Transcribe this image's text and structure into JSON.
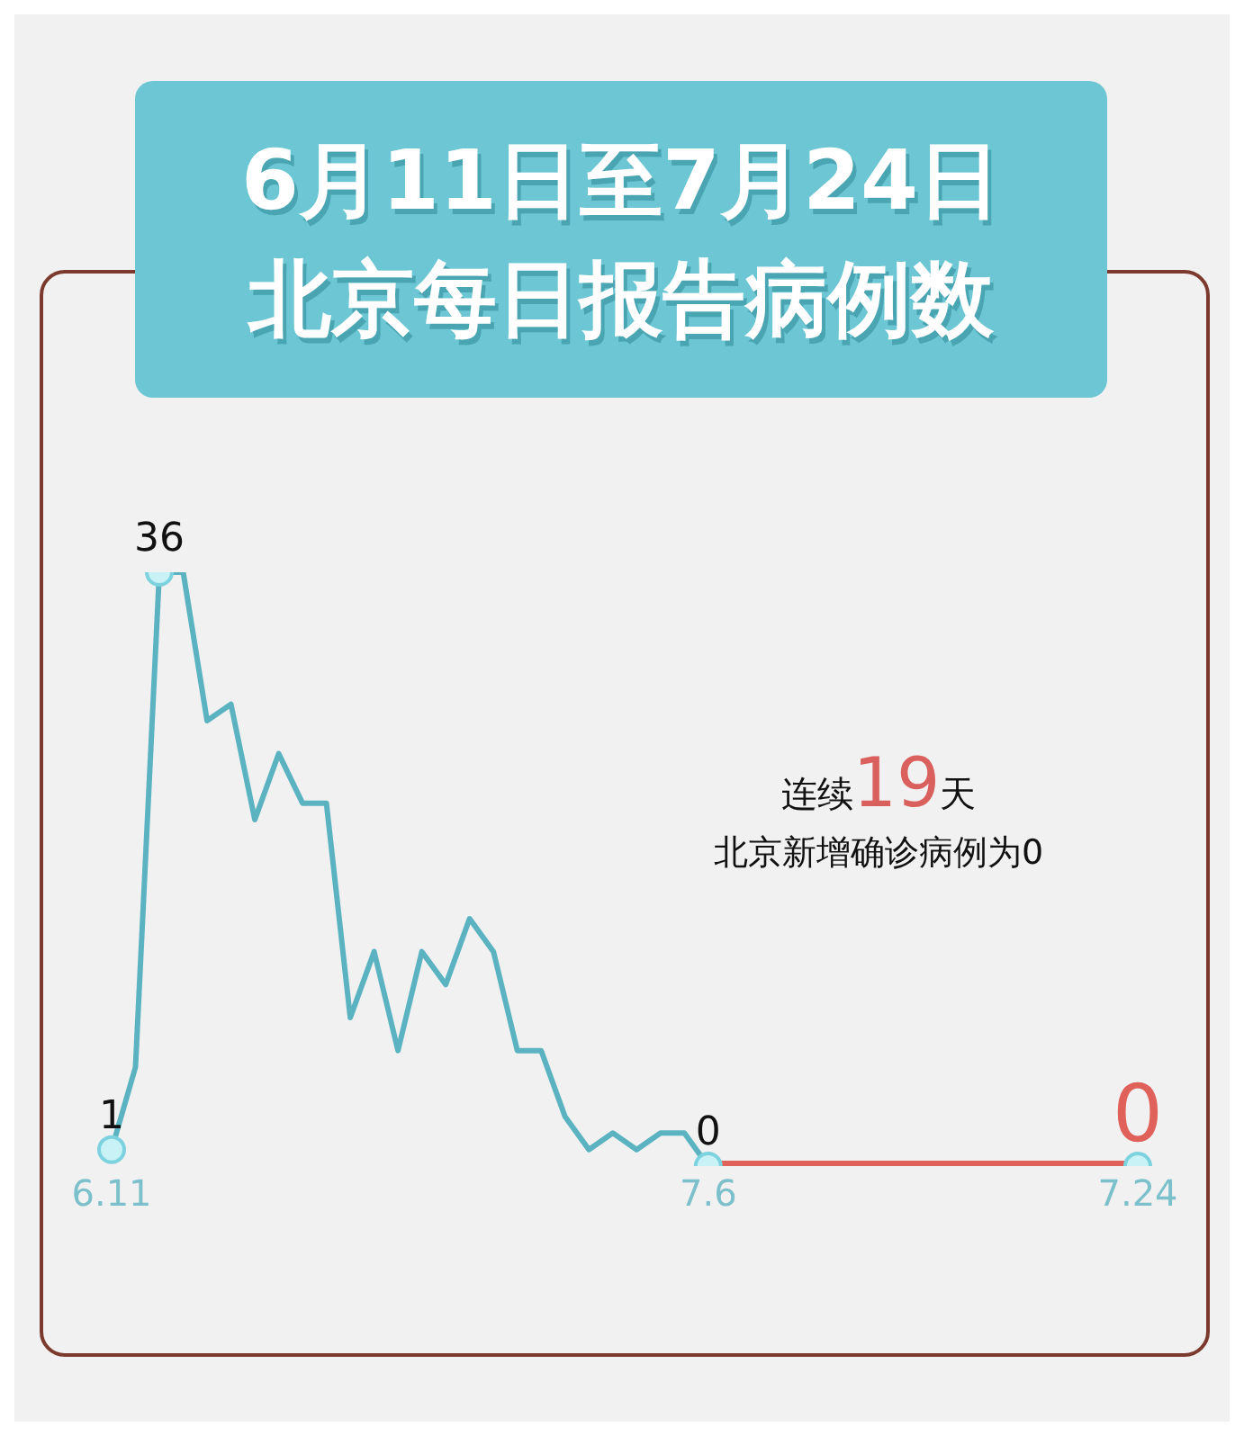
{
  "chart_data": {
    "type": "line",
    "title": "6月11日至7月24日",
    "subtitle": "北京每日报告病例数",
    "categories": [
      "6.11",
      null,
      null,
      null,
      null,
      null,
      null,
      null,
      null,
      null,
      null,
      null,
      null,
      null,
      null,
      null,
      null,
      null,
      null,
      null,
      null,
      null,
      null,
      null,
      null,
      "7.6",
      null,
      null,
      null,
      null,
      null,
      null,
      null,
      null,
      null,
      null,
      null,
      null,
      null,
      null,
      null,
      null,
      null,
      "7.24"
    ],
    "series": [
      {
        "color": "#5bb3c1",
        "values": [
          1,
          6,
          36,
          36,
          27,
          28,
          21,
          25,
          22,
          22,
          9,
          13,
          7,
          13,
          11,
          15,
          13,
          7,
          7,
          3,
          1,
          2,
          1,
          2,
          2,
          0,
          null,
          null,
          null,
          null,
          null,
          null,
          null,
          null,
          null,
          null,
          null,
          null,
          null,
          null,
          null,
          null,
          null,
          null
        ],
        "value_labels": [
          "1",
          null,
          "36",
          null,
          null,
          null,
          null,
          null,
          null,
          null,
          null,
          null,
          null,
          null,
          null,
          null,
          null,
          null,
          null,
          null,
          null,
          null,
          null,
          null,
          null,
          "0",
          null,
          null,
          null,
          null,
          null,
          null,
          null,
          null,
          null,
          null,
          null,
          null,
          null,
          null,
          null,
          null,
          null,
          null
        ]
      },
      {
        "color": "#e0605a",
        "values": [
          null,
          null,
          null,
          null,
          null,
          null,
          null,
          null,
          null,
          null,
          null,
          null,
          null,
          null,
          null,
          null,
          null,
          null,
          null,
          null,
          null,
          null,
          null,
          null,
          null,
          0,
          0,
          0,
          0,
          0,
          0,
          0,
          0,
          0,
          0,
          0,
          0,
          0,
          0,
          0,
          0,
          0,
          0,
          0
        ],
        "value_labels": [
          null,
          null,
          null,
          null,
          null,
          null,
          null,
          null,
          null,
          null,
          null,
          null,
          null,
          null,
          null,
          null,
          null,
          null,
          null,
          null,
          null,
          null,
          null,
          null,
          null,
          null,
          null,
          null,
          null,
          null,
          null,
          null,
          null,
          null,
          null,
          null,
          null,
          null,
          null,
          null,
          null,
          null,
          null,
          "0"
        ]
      }
    ],
    "annotations": [
      "连续19天",
      "北京新增确诊病例为0"
    ],
    "line_style": "solid",
    "legend": false,
    "grid": false
  }
}
